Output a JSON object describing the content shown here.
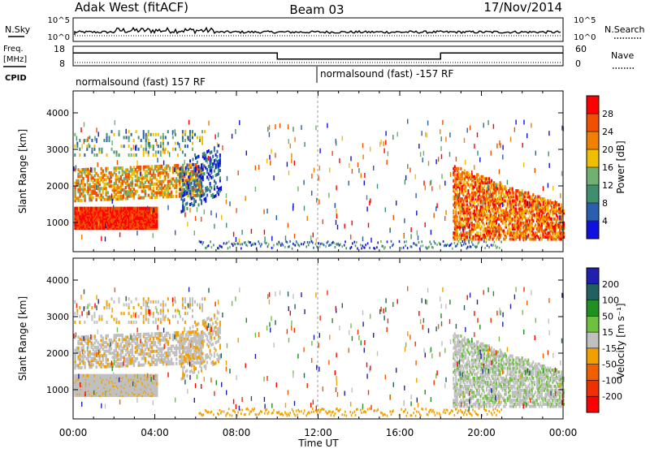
{
  "header": {
    "station": "Adak West (fitACF)",
    "beam": "Beam 03",
    "date": "17/Nov/2014"
  },
  "noise_panel": {
    "left_label": "N.Sky",
    "right_label": "N.Search",
    "left_ticks": [
      "10^5",
      "10^0"
    ],
    "right_ticks": [
      "10^5",
      "10^0"
    ]
  },
  "freq_panel": {
    "left_label_1": "Freq.",
    "left_label_2": "[MHz]",
    "right_label": "Nave",
    "left_ticks": [
      "18",
      "8"
    ],
    "right_ticks": [
      "60",
      "0"
    ],
    "freq_mhz_segments": [
      {
        "from": "00:00",
        "to": "10:00",
        "value": 14.5
      },
      {
        "from": "10:00",
        "to": "18:00",
        "value": 10.5
      },
      {
        "from": "18:00",
        "to": "24:00",
        "value": 14.5
      }
    ]
  },
  "cpid": {
    "label": "CPID",
    "segments": [
      {
        "from": "00:00",
        "to": "12:00",
        "text": "normalsound (fast) 157 RF"
      },
      {
        "from": "12:00",
        "to": "24:00",
        "text": "normalsound (fast) -157 RF"
      }
    ]
  },
  "chart_data": [
    {
      "type": "heatmap",
      "panel": "power",
      "ylabel": "Slant Range [km]",
      "xlabel": "",
      "ylim": [
        200,
        4600
      ],
      "yticks": [
        "1000",
        "2000",
        "3000",
        "4000"
      ],
      "colorbar": {
        "label": "Power [dB]",
        "ticks": [
          "4",
          "8",
          "12",
          "16",
          "20",
          "24",
          "28"
        ],
        "colors": [
          "#1010e0",
          "#2a5fb0",
          "#3f8f6f",
          "#70b070",
          "#f0c000",
          "#f08000",
          "#f05000",
          "#ff0000"
        ]
      }
    },
    {
      "type": "heatmap",
      "panel": "velocity",
      "ylabel": "Slant Range [km]",
      "xlabel": "Time UT",
      "ylim": [
        200,
        4600
      ],
      "yticks": [
        "1000",
        "2000",
        "3000",
        "4000"
      ],
      "xticks": [
        "00:00",
        "04:00",
        "08:00",
        "12:00",
        "16:00",
        "20:00",
        "00:00"
      ],
      "colorbar": {
        "label": "Velocity [m s⁻¹]",
        "ticks": [
          "200",
          "100",
          "50",
          "15",
          "-15",
          "-50",
          "-100",
          "-200"
        ],
        "colors": [
          "#2020b0",
          "#206060",
          "#209020",
          "#70c040",
          "#c0c0c0",
          "#f0a000",
          "#f06000",
          "#f03000",
          "#ff0000"
        ]
      }
    }
  ],
  "colors": {
    "power_low": "#ff0000",
    "velocity_ground": "#c0c0c0"
  }
}
